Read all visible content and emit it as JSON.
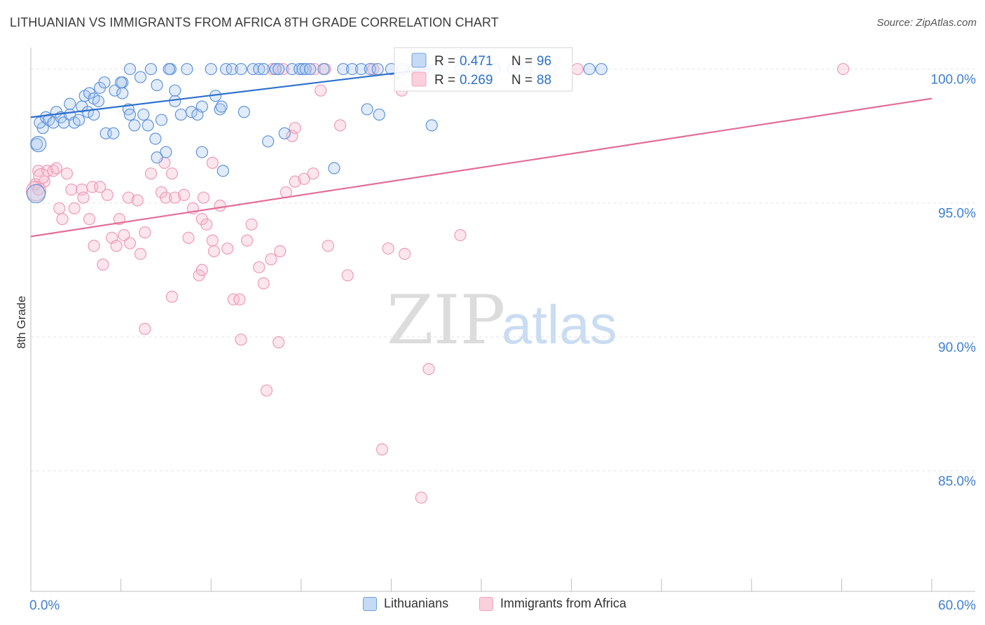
{
  "title": "LITHUANIAN VS IMMIGRANTS FROM AFRICA 8TH GRADE CORRELATION CHART",
  "source": "Source: ZipAtlas.com",
  "watermark": {
    "zip": "ZIP",
    "atlas": "atlas"
  },
  "chart_data": {
    "type": "scatter",
    "xlabel": "",
    "ylabel": "8th Grade",
    "xlim": [
      0,
      60
    ],
    "ylim": [
      80.5,
      100.8
    ],
    "x_tick_labels": {
      "min": "0.0%",
      "max": "60.0%"
    },
    "y_ticks": [
      {
        "value": 100,
        "label": "100.0%"
      },
      {
        "value": 95,
        "label": "95.0%"
      },
      {
        "value": 90,
        "label": "90.0%"
      },
      {
        "value": 85,
        "label": "85.0%"
      }
    ],
    "grid": true,
    "legend_position": "top-center",
    "series": [
      {
        "name": "Lithuanians",
        "color": "#6f9fe0",
        "line_color": "#2c6fce",
        "R": "0.471",
        "N": "96",
        "trend": {
          "x0": 0,
          "y0": 98.2,
          "x1": 26.5,
          "y1": 100.0
        },
        "points": [
          [
            0.8,
            97.8
          ],
          [
            0.6,
            98.0
          ],
          [
            1.0,
            98.2
          ],
          [
            1.2,
            98.1
          ],
          [
            1.5,
            98.0
          ],
          [
            1.7,
            98.4
          ],
          [
            2.0,
            98.2
          ],
          [
            2.2,
            98.0
          ],
          [
            2.6,
            98.3
          ],
          [
            2.9,
            98.0
          ],
          [
            3.2,
            98.1
          ],
          [
            2.6,
            98.7
          ],
          [
            3.4,
            98.6
          ],
          [
            3.6,
            99.0
          ],
          [
            3.9,
            99.1
          ],
          [
            4.2,
            98.9
          ],
          [
            4.5,
            98.8
          ],
          [
            4.6,
            99.3
          ],
          [
            4.9,
            99.5
          ],
          [
            5.6,
            99.2
          ],
          [
            6.1,
            99.1
          ],
          [
            6.1,
            99.5
          ],
          [
            6.0,
            99.5
          ],
          [
            3.8,
            98.4
          ],
          [
            4.2,
            98.3
          ],
          [
            5.0,
            97.6
          ],
          [
            5.5,
            97.6
          ],
          [
            6.5,
            98.5
          ],
          [
            6.6,
            98.3
          ],
          [
            6.9,
            97.9
          ],
          [
            6.6,
            100.0
          ],
          [
            7.3,
            99.7
          ],
          [
            7.5,
            98.3
          ],
          [
            7.8,
            97.9
          ],
          [
            8.0,
            100.0
          ],
          [
            8.4,
            99.4
          ],
          [
            8.7,
            98.1
          ],
          [
            9.3,
            100.0
          ],
          [
            9.2,
            100.0
          ],
          [
            9.6,
            98.8
          ],
          [
            9.6,
            99.2
          ],
          [
            10.0,
            98.3
          ],
          [
            10.4,
            100.0
          ],
          [
            10.7,
            98.4
          ],
          [
            11.1,
            98.3
          ],
          [
            11.4,
            98.6
          ],
          [
            12.0,
            100.0
          ],
          [
            12.3,
            99.0
          ],
          [
            12.6,
            98.5
          ],
          [
            12.7,
            98.6
          ],
          [
            13.0,
            100.0
          ],
          [
            13.4,
            100.0
          ],
          [
            14.0,
            100.0
          ],
          [
            14.2,
            98.4
          ],
          [
            14.8,
            100.0
          ],
          [
            15.2,
            100.0
          ],
          [
            15.5,
            100.0
          ],
          [
            15.8,
            97.3
          ],
          [
            16.3,
            100.0
          ],
          [
            16.5,
            100.0
          ],
          [
            16.9,
            97.6
          ],
          [
            17.4,
            100.0
          ],
          [
            17.9,
            100.0
          ],
          [
            18.1,
            100.0
          ],
          [
            18.3,
            100.0
          ],
          [
            18.6,
            100.0
          ],
          [
            19.5,
            100.0
          ],
          [
            20.2,
            96.3
          ],
          [
            20.8,
            100.0
          ],
          [
            21.4,
            100.0
          ],
          [
            22.0,
            100.0
          ],
          [
            22.6,
            100.0
          ],
          [
            23.1,
            100.0
          ],
          [
            24.0,
            100.0
          ],
          [
            24.8,
            100.0
          ],
          [
            25.5,
            100.0
          ],
          [
            26.2,
            100.0
          ],
          [
            27.0,
            100.0
          ],
          [
            28.6,
            100.0
          ],
          [
            29.3,
            100.0
          ],
          [
            30.1,
            100.0
          ],
          [
            30.9,
            100.0
          ],
          [
            32.1,
            100.0
          ],
          [
            33.0,
            100.0
          ],
          [
            34.6,
            100.0
          ],
          [
            37.2,
            100.0
          ],
          [
            38.0,
            100.0
          ],
          [
            22.4,
            98.5
          ],
          [
            23.2,
            98.3
          ],
          [
            26.7,
            97.9
          ],
          [
            9.0,
            96.9
          ],
          [
            8.4,
            96.7
          ],
          [
            11.4,
            96.9
          ],
          [
            12.8,
            96.2
          ],
          [
            8.3,
            97.4
          ],
          [
            0.4,
            97.2
          ]
        ]
      },
      {
        "name": "Immigrants from Africa",
        "color": "#f3a3bc",
        "line_color": "#e36d99",
        "R": "0.269",
        "N": "88",
        "trend": {
          "x0": 0,
          "y0": 93.75,
          "x1": 60,
          "y1": 98.9
        },
        "points": [
          [
            0.3,
            95.7
          ],
          [
            0.5,
            96.2
          ],
          [
            0.9,
            95.8
          ],
          [
            1.1,
            96.2
          ],
          [
            1.5,
            96.2
          ],
          [
            1.7,
            96.3
          ],
          [
            2.4,
            96.1
          ],
          [
            1.9,
            94.8
          ],
          [
            2.1,
            94.4
          ],
          [
            2.7,
            95.5
          ],
          [
            2.9,
            94.8
          ],
          [
            3.4,
            95.5
          ],
          [
            3.5,
            95.2
          ],
          [
            3.9,
            94.4
          ],
          [
            4.1,
            95.6
          ],
          [
            4.2,
            93.4
          ],
          [
            4.6,
            95.6
          ],
          [
            4.8,
            92.7
          ],
          [
            5.1,
            95.3
          ],
          [
            5.4,
            93.7
          ],
          [
            5.7,
            93.4
          ],
          [
            5.9,
            94.4
          ],
          [
            6.2,
            93.8
          ],
          [
            6.5,
            95.2
          ],
          [
            6.6,
            93.5
          ],
          [
            7.1,
            95.1
          ],
          [
            7.3,
            93.1
          ],
          [
            7.6,
            93.9
          ],
          [
            8.0,
            96.1
          ],
          [
            8.7,
            95.4
          ],
          [
            8.9,
            96.5
          ],
          [
            9.0,
            95.2
          ],
          [
            9.4,
            91.5
          ],
          [
            9.6,
            95.2
          ],
          [
            10.2,
            95.3
          ],
          [
            10.5,
            93.7
          ],
          [
            10.8,
            94.8
          ],
          [
            11.4,
            94.4
          ],
          [
            11.5,
            95.2
          ],
          [
            11.7,
            94.2
          ],
          [
            12.1,
            93.6
          ],
          [
            12.2,
            93.2
          ],
          [
            12.6,
            94.9
          ],
          [
            13.1,
            93.3
          ],
          [
            13.5,
            91.4
          ],
          [
            13.9,
            91.4
          ],
          [
            14.0,
            89.9
          ],
          [
            14.4,
            93.6
          ],
          [
            14.7,
            94.2
          ],
          [
            15.2,
            92.6
          ],
          [
            15.5,
            92.0
          ],
          [
            15.7,
            88.0
          ],
          [
            16.0,
            92.9
          ],
          [
            16.1,
            100.0
          ],
          [
            16.5,
            89.8
          ],
          [
            16.6,
            93.2
          ],
          [
            17.0,
            95.4
          ],
          [
            17.4,
            97.5
          ],
          [
            17.6,
            95.8
          ],
          [
            18.2,
            95.9
          ],
          [
            18.8,
            96.1
          ],
          [
            19.3,
            99.2
          ],
          [
            19.6,
            100.0
          ],
          [
            19.8,
            93.4
          ],
          [
            21.1,
            92.3
          ],
          [
            22.8,
            100.0
          ],
          [
            23.4,
            85.8
          ],
          [
            23.8,
            93.3
          ],
          [
            24.9,
            93.1
          ],
          [
            25.9,
            100.0
          ],
          [
            26.0,
            84.0
          ],
          [
            26.5,
            88.8
          ],
          [
            28.6,
            93.8
          ],
          [
            32.1,
            100.0
          ],
          [
            34.2,
            100.0
          ],
          [
            36.4,
            100.0
          ],
          [
            54.1,
            100.0
          ],
          [
            20.6,
            97.9
          ],
          [
            17.6,
            97.8
          ],
          [
            24.7,
            99.2
          ],
          [
            9.4,
            96.1
          ],
          [
            11.2,
            92.3
          ],
          [
            11.4,
            92.5
          ],
          [
            12.1,
            96.5
          ],
          [
            16.8,
            100.0
          ],
          [
            7.6,
            90.3
          ],
          [
            18.9,
            100.0
          ],
          [
            0.5,
            95.5
          ]
        ]
      }
    ]
  }
}
